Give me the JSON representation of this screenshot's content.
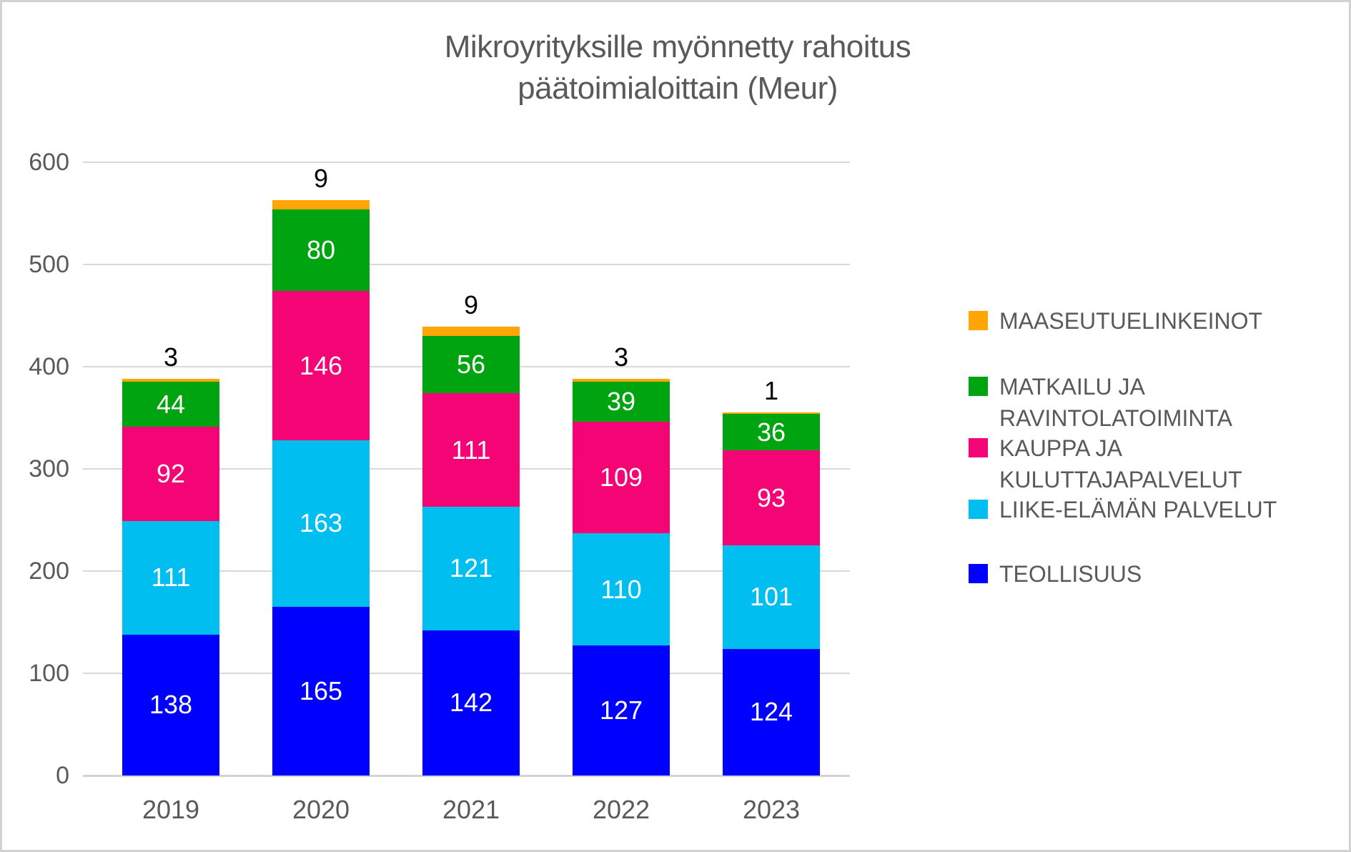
{
  "title": {
    "line1": "Mikroyrityksille myönnetty rahoitus",
    "line2": "päätoimialoittain (Meur)"
  },
  "colors": {
    "title_text": "#595959",
    "axis_text": "#595959",
    "gridline": "#d9d9d9",
    "frame_border": "#d2d2d2",
    "inside_label": "#ffffff",
    "outside_label": "#000000"
  },
  "chart_data": {
    "type": "bar",
    "stacked": true,
    "title": "Mikroyrityksille myönnetty rahoitus päätoimialoittain (Meur)",
    "categories": [
      "2019",
      "2020",
      "2021",
      "2022",
      "2023"
    ],
    "series": [
      {
        "name": "TEOLLISUUS",
        "color": "#0000fe",
        "values": [
          138,
          165,
          142,
          127,
          124
        ],
        "label_position": "inside"
      },
      {
        "name": "LIIKE-ELÄMÄN PALVELUT",
        "color": "#00bff0",
        "values": [
          111,
          163,
          121,
          110,
          101
        ],
        "label_position": "inside"
      },
      {
        "name": "KAUPPA JA KULUTTAJAPALVELUT",
        "color": "#f40475",
        "values": [
          92,
          146,
          111,
          109,
          93
        ],
        "label_position": "inside"
      },
      {
        "name": "MATKAILU JA RAVINTOLATOIMINTA",
        "color": "#00a410",
        "values": [
          44,
          80,
          56,
          39,
          36
        ],
        "label_position": "inside"
      },
      {
        "name": "MAASEUTUELINKEINOT",
        "color": "#ffa505",
        "values": [
          3,
          9,
          9,
          3,
          1
        ],
        "label_position": "above"
      }
    ],
    "totals": [
      388,
      563,
      439,
      388,
      355
    ],
    "xlabel": "",
    "ylabel": "",
    "ylim": [
      0,
      600
    ],
    "yticks": [
      0,
      100,
      200,
      300,
      400,
      500,
      600
    ],
    "grid": true,
    "legend_position": "right",
    "legend": [
      {
        "swatch_color": "#ffa505",
        "lines": [
          "MAASEUTUELINKEINOT"
        ]
      },
      {
        "swatch_color": "#00a410",
        "lines": [
          "MATKAILU JA",
          "RAVINTOLATOIMINTA"
        ]
      },
      {
        "swatch_color": "#f40475",
        "lines": [
          "KAUPPA JA",
          "KULUTTAJAPALVELUT"
        ]
      },
      {
        "swatch_color": "#00bff0",
        "lines": [
          "LIIKE-ELÄMÄN PALVELUT"
        ]
      },
      {
        "swatch_color": "#0000fe",
        "lines": [
          "TEOLLISUUS"
        ]
      }
    ]
  }
}
